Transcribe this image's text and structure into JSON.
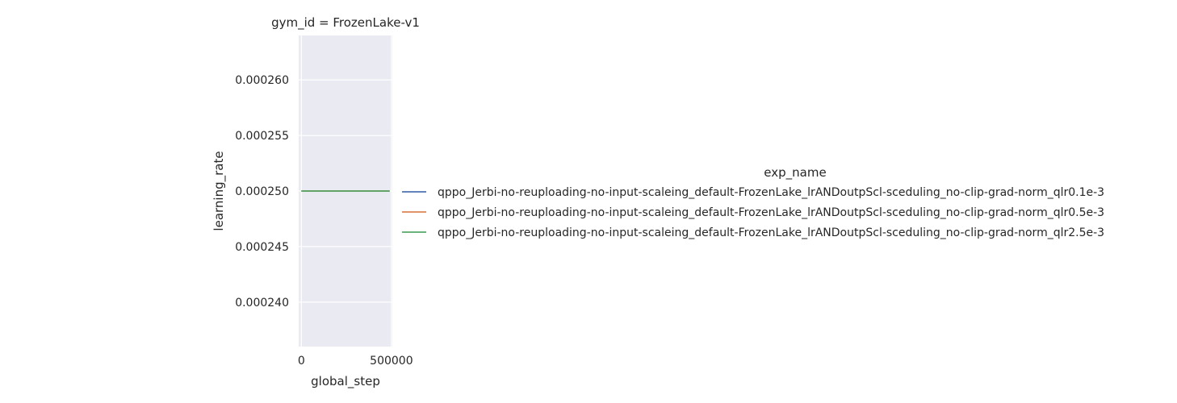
{
  "chart_data": {
    "type": "line",
    "title": "gym_id = FrozenLake-v1",
    "xlabel": "global_step",
    "ylabel": "learning_rate",
    "xlim": [
      -15000,
      505000
    ],
    "ylim": [
      0.000236,
      0.000264
    ],
    "xticks": [
      0,
      500000
    ],
    "xtick_labels": [
      "0",
      "500000"
    ],
    "yticks": [
      0.00024,
      0.000245,
      0.00025,
      0.000255,
      0.00026
    ],
    "ytick_labels": [
      "0.000240",
      "0.000245",
      "0.000250",
      "0.000255",
      "0.000260"
    ],
    "grid": true,
    "legend": {
      "title": "exp_name",
      "placement": "right"
    },
    "series": [
      {
        "name": "qppo_Jerbi-no-reuploading-no-input-scaleing_default-FrozenLake_lrANDoutpScl-sceduling_no-clip-grad-norm_qlr0.1e-3",
        "color": "#4c72b0",
        "x": [
          0,
          490000
        ],
        "y": [
          0.00025,
          0.00025
        ]
      },
      {
        "name": "qppo_Jerbi-no-reuploading-no-input-scaleing_default-FrozenLake_lrANDoutpScl-sceduling_no-clip-grad-norm_qlr0.5e-3",
        "color": "#dd8452",
        "x": [
          0,
          490000
        ],
        "y": [
          0.00025,
          0.00025
        ]
      },
      {
        "name": "qppo_Jerbi-no-reuploading-no-input-scaleing_default-FrozenLake_lrANDoutpScl-sceduling_no-clip-grad-norm_qlr2.5e-3",
        "color": "#55a868",
        "x": [
          0,
          490000
        ],
        "y": [
          0.00025,
          0.00025
        ]
      }
    ],
    "colors": {
      "plot_bg": "#eaeaf2",
      "grid": "#ffffff"
    }
  }
}
